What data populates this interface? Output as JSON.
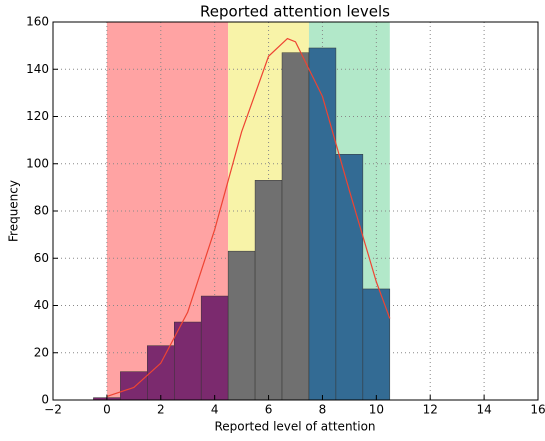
{
  "chart_data": {
    "type": "histogram",
    "title": "Reported attention levels",
    "x_label": "Reported level of attention",
    "y_label": "Frequency",
    "bins": [
      -0.5,
      0.5,
      1.5,
      2.5,
      3.5,
      4.5,
      5.5,
      6.5,
      7.5,
      8.5,
      9.5,
      10.5
    ],
    "values": [
      1,
      12,
      23,
      33,
      44,
      63,
      93,
      147,
      149,
      104,
      47
    ],
    "colors": [
      "#7b2a6e",
      "#7b2a6e",
      "#7b2a6e",
      "#7b2a6e",
      "#7b2a6e",
      "#707070",
      "#707070",
      "#707070",
      "#336b94",
      "#336b94",
      "#336b94"
    ],
    "spans": [
      {
        "xmin": 0,
        "xmax": 4.5,
        "color": "#ffa3a3"
      },
      {
        "xmin": 4.5,
        "xmax": 7.5,
        "color": "#f8f3a8"
      },
      {
        "xmin": 7.5,
        "xmax": 10.5,
        "color": "#b2e8c9"
      }
    ],
    "curve": {
      "color": "#ee4433",
      "x": [
        0,
        1,
        2,
        3,
        4,
        5,
        6,
        6.7,
        7,
        8,
        9,
        10,
        10.5
      ],
      "values": [
        1.5,
        5.3,
        15.6,
        37.2,
        72.1,
        113.5,
        145.5,
        153,
        151.6,
        128.5,
        88.6,
        50.0,
        34.5
      ]
    },
    "xlim": [
      -2,
      16
    ],
    "ylim": [
      0,
      160
    ],
    "xticks": [
      {
        "value": -2,
        "label": "−2"
      },
      0,
      2,
      4,
      6,
      8,
      10,
      12,
      14,
      16
    ],
    "yticks": [
      0,
      20,
      40,
      60,
      80,
      100,
      120,
      140,
      160
    ],
    "grid": true
  }
}
